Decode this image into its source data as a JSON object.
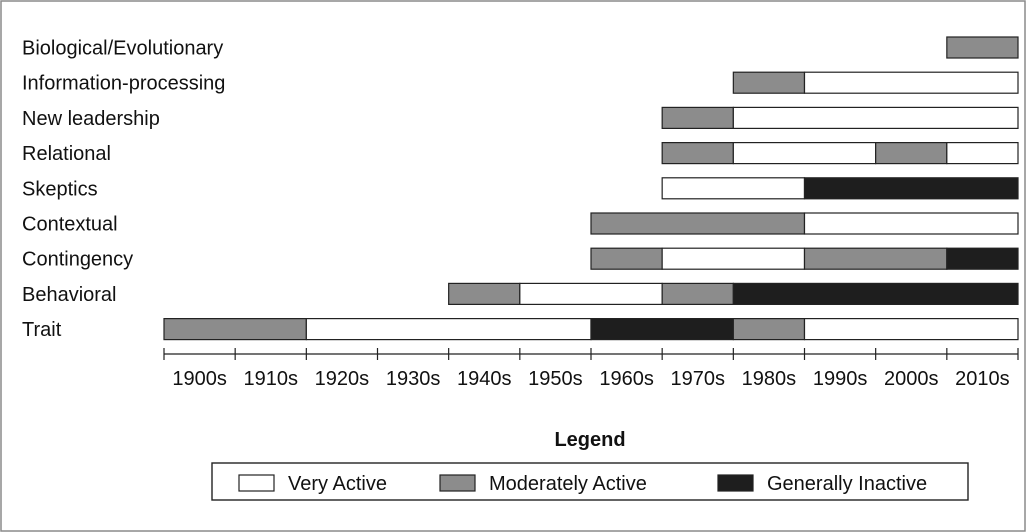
{
  "chart_data": {
    "type": "bar",
    "orientation": "horizontal-timeline",
    "title": "",
    "xlabel": "",
    "ylabel": "",
    "x_ticks": [
      "1900s",
      "1910s",
      "1920s",
      "1930s",
      "1940s",
      "1950s",
      "1960s",
      "1970s",
      "1980s",
      "1990s",
      "2000s",
      "2010s"
    ],
    "xlim": [
      1900,
      2020
    ],
    "grid": false,
    "rows": [
      {
        "label": "Biological/Evolutionary",
        "segments": [
          {
            "start": 2010,
            "end": 2020,
            "status": "moderate"
          }
        ]
      },
      {
        "label": "Information-processing",
        "segments": [
          {
            "start": 1980,
            "end": 1990,
            "status": "moderate"
          },
          {
            "start": 1990,
            "end": 2020,
            "status": "very"
          }
        ]
      },
      {
        "label": "New leadership",
        "segments": [
          {
            "start": 1970,
            "end": 1980,
            "status": "moderate"
          },
          {
            "start": 1980,
            "end": 2020,
            "status": "very"
          }
        ]
      },
      {
        "label": "Relational",
        "segments": [
          {
            "start": 1970,
            "end": 1980,
            "status": "moderate"
          },
          {
            "start": 1980,
            "end": 2000,
            "status": "very"
          },
          {
            "start": 2000,
            "end": 2010,
            "status": "moderate"
          },
          {
            "start": 2010,
            "end": 2020,
            "status": "very"
          }
        ]
      },
      {
        "label": "Skeptics",
        "segments": [
          {
            "start": 1970,
            "end": 1990,
            "status": "very"
          },
          {
            "start": 1990,
            "end": 2020,
            "status": "inactive"
          }
        ]
      },
      {
        "label": "Contextual",
        "segments": [
          {
            "start": 1960,
            "end": 1990,
            "status": "moderate"
          },
          {
            "start": 1990,
            "end": 2020,
            "status": "very"
          }
        ]
      },
      {
        "label": "Contingency",
        "segments": [
          {
            "start": 1960,
            "end": 1970,
            "status": "moderate"
          },
          {
            "start": 1970,
            "end": 1990,
            "status": "very"
          },
          {
            "start": 1990,
            "end": 2010,
            "status": "moderate"
          },
          {
            "start": 2010,
            "end": 2020,
            "status": "inactive"
          }
        ]
      },
      {
        "label": "Behavioral",
        "segments": [
          {
            "start": 1940,
            "end": 1950,
            "status": "moderate"
          },
          {
            "start": 1950,
            "end": 1970,
            "status": "very"
          },
          {
            "start": 1970,
            "end": 1980,
            "status": "moderate"
          },
          {
            "start": 1980,
            "end": 2020,
            "status": "inactive"
          }
        ]
      },
      {
        "label": "Trait",
        "segments": [
          {
            "start": 1900,
            "end": 1920,
            "status": "moderate"
          },
          {
            "start": 1920,
            "end": 1960,
            "status": "very"
          },
          {
            "start": 1960,
            "end": 1980,
            "status": "inactive"
          },
          {
            "start": 1980,
            "end": 1990,
            "status": "moderate"
          },
          {
            "start": 1990,
            "end": 2020,
            "status": "very"
          }
        ]
      }
    ],
    "legend": {
      "title": "Legend",
      "placement": "bottom-center",
      "entries": [
        {
          "key": "very",
          "label": "Very Active"
        },
        {
          "key": "moderate",
          "label": "Moderately Active"
        },
        {
          "key": "inactive",
          "label": "Generally Inactive"
        }
      ]
    },
    "colors": {
      "very": "#ffffff",
      "moderate": "#8c8c8c",
      "inactive": "#1e1e1e",
      "stroke": "#222222"
    }
  }
}
